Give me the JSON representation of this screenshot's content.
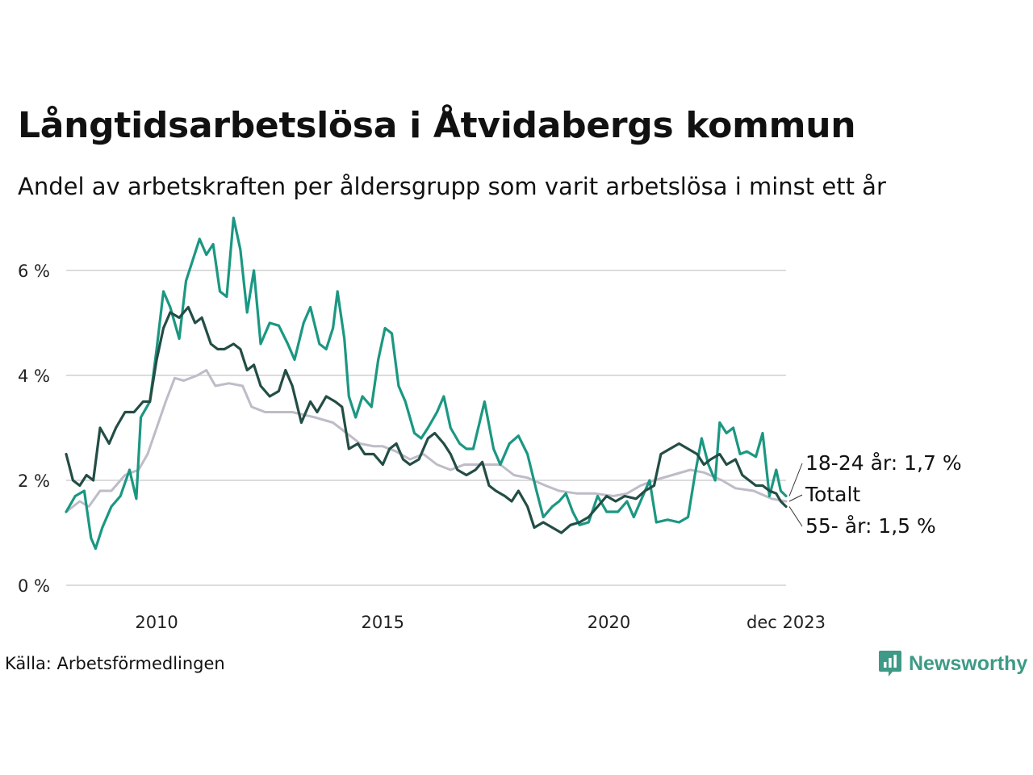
{
  "title": "Långtidsarbetslösa i Åtvidabergs kommun",
  "subtitle": "Andel av arbetskraften per åldersgrupp som varit arbetslösa i minst ett år",
  "source": "Källa: Arbetsförmedlingen",
  "brand": {
    "name": "Newsworthy",
    "icon": "newsworthy-logo-icon",
    "color": "#3e9a86"
  },
  "chart_data": {
    "type": "line",
    "title": "Långtidsarbetslösa i Åtvidabergs kommun",
    "subtitle": "Andel av arbetskraften per åldersgrupp som varit arbetslösa i minst ett år",
    "xlabel": "",
    "ylabel": "",
    "x_range": [
      2008.0,
      2023.917
    ],
    "ylim": [
      0,
      7
    ],
    "y_ticks": [
      0,
      2,
      4,
      6
    ],
    "y_tick_labels": [
      "0 %",
      "2 %",
      "4 %",
      "6 %"
    ],
    "x_ticks": [
      2010,
      2015,
      2020,
      2023.917
    ],
    "x_tick_labels": [
      "2010",
      "2015",
      "2020",
      "dec 2023"
    ],
    "grid": true,
    "legend": "direct labels at line ends (right)",
    "series": [
      {
        "name": "Totalt",
        "end_label": "Totalt",
        "color": "#bdbcc8",
        "points": [
          [
            2008.0,
            1.4
          ],
          [
            2008.3,
            1.6
          ],
          [
            2008.5,
            1.5
          ],
          [
            2008.75,
            1.8
          ],
          [
            2009.0,
            1.8
          ],
          [
            2009.3,
            2.1
          ],
          [
            2009.6,
            2.2
          ],
          [
            2009.8,
            2.5
          ],
          [
            2010.0,
            3.0
          ],
          [
            2010.2,
            3.5
          ],
          [
            2010.4,
            3.95
          ],
          [
            2010.6,
            3.9
          ],
          [
            2010.9,
            4.0
          ],
          [
            2011.1,
            4.1
          ],
          [
            2011.3,
            3.8
          ],
          [
            2011.6,
            3.85
          ],
          [
            2011.9,
            3.8
          ],
          [
            2012.1,
            3.4
          ],
          [
            2012.4,
            3.3
          ],
          [
            2012.7,
            3.3
          ],
          [
            2013.0,
            3.3
          ],
          [
            2013.5,
            3.2
          ],
          [
            2013.9,
            3.1
          ],
          [
            2014.2,
            2.9
          ],
          [
            2014.5,
            2.7
          ],
          [
            2014.8,
            2.65
          ],
          [
            2015.0,
            2.65
          ],
          [
            2015.3,
            2.55
          ],
          [
            2015.6,
            2.4
          ],
          [
            2015.9,
            2.5
          ],
          [
            2016.2,
            2.3
          ],
          [
            2016.5,
            2.2
          ],
          [
            2016.8,
            2.3
          ],
          [
            2017.2,
            2.3
          ],
          [
            2017.6,
            2.3
          ],
          [
            2017.9,
            2.1
          ],
          [
            2018.2,
            2.05
          ],
          [
            2018.6,
            1.9
          ],
          [
            2018.9,
            1.8
          ],
          [
            2019.3,
            1.75
          ],
          [
            2019.7,
            1.75
          ],
          [
            2020.1,
            1.7
          ],
          [
            2020.4,
            1.75
          ],
          [
            2020.7,
            1.9
          ],
          [
            2021.0,
            2.0
          ],
          [
            2021.4,
            2.1
          ],
          [
            2021.8,
            2.2
          ],
          [
            2022.1,
            2.15
          ],
          [
            2022.5,
            2.0
          ],
          [
            2022.8,
            1.85
          ],
          [
            2023.2,
            1.8
          ],
          [
            2023.6,
            1.65
          ],
          [
            2023.917,
            1.6
          ]
        ]
      },
      {
        "name": "18-24 år",
        "end_label": "18-24 år: 1,7 %",
        "color": "#1b9782",
        "points": [
          [
            2008.0,
            1.4
          ],
          [
            2008.2,
            1.7
          ],
          [
            2008.4,
            1.8
          ],
          [
            2008.55,
            0.9
          ],
          [
            2008.65,
            0.7
          ],
          [
            2008.8,
            1.1
          ],
          [
            2009.0,
            1.5
          ],
          [
            2009.2,
            1.7
          ],
          [
            2009.4,
            2.2
          ],
          [
            2009.55,
            1.65
          ],
          [
            2009.65,
            3.2
          ],
          [
            2009.85,
            3.5
          ],
          [
            2010.0,
            4.5
          ],
          [
            2010.15,
            5.6
          ],
          [
            2010.3,
            5.3
          ],
          [
            2010.5,
            4.7
          ],
          [
            2010.65,
            5.8
          ],
          [
            2010.8,
            6.2
          ],
          [
            2010.95,
            6.6
          ],
          [
            2011.1,
            6.3
          ],
          [
            2011.25,
            6.5
          ],
          [
            2011.4,
            5.6
          ],
          [
            2011.55,
            5.5
          ],
          [
            2011.7,
            7.0
          ],
          [
            2011.85,
            6.4
          ],
          [
            2012.0,
            5.2
          ],
          [
            2012.15,
            6.0
          ],
          [
            2012.3,
            4.6
          ],
          [
            2012.5,
            5.0
          ],
          [
            2012.7,
            4.95
          ],
          [
            2012.9,
            4.6
          ],
          [
            2013.05,
            4.3
          ],
          [
            2013.25,
            5.0
          ],
          [
            2013.4,
            5.3
          ],
          [
            2013.6,
            4.6
          ],
          [
            2013.75,
            4.5
          ],
          [
            2013.9,
            4.9
          ],
          [
            2014.0,
            5.6
          ],
          [
            2014.15,
            4.7
          ],
          [
            2014.25,
            3.6
          ],
          [
            2014.4,
            3.2
          ],
          [
            2014.55,
            3.6
          ],
          [
            2014.75,
            3.4
          ],
          [
            2014.9,
            4.3
          ],
          [
            2015.05,
            4.9
          ],
          [
            2015.2,
            4.8
          ],
          [
            2015.35,
            3.8
          ],
          [
            2015.5,
            3.5
          ],
          [
            2015.7,
            2.9
          ],
          [
            2015.85,
            2.8
          ],
          [
            2016.0,
            3.0
          ],
          [
            2016.2,
            3.3
          ],
          [
            2016.35,
            3.6
          ],
          [
            2016.5,
            3.0
          ],
          [
            2016.7,
            2.7
          ],
          [
            2016.85,
            2.6
          ],
          [
            2017.0,
            2.6
          ],
          [
            2017.25,
            3.5
          ],
          [
            2017.45,
            2.6
          ],
          [
            2017.6,
            2.3
          ],
          [
            2017.8,
            2.7
          ],
          [
            2018.0,
            2.85
          ],
          [
            2018.2,
            2.5
          ],
          [
            2018.4,
            1.8
          ],
          [
            2018.55,
            1.3
          ],
          [
            2018.75,
            1.5
          ],
          [
            2018.9,
            1.6
          ],
          [
            2019.05,
            1.75
          ],
          [
            2019.2,
            1.4
          ],
          [
            2019.35,
            1.15
          ],
          [
            2019.55,
            1.2
          ],
          [
            2019.75,
            1.7
          ],
          [
            2019.95,
            1.4
          ],
          [
            2020.2,
            1.4
          ],
          [
            2020.4,
            1.6
          ],
          [
            2020.55,
            1.3
          ],
          [
            2020.75,
            1.7
          ],
          [
            2020.9,
            2.0
          ],
          [
            2021.05,
            1.2
          ],
          [
            2021.3,
            1.25
          ],
          [
            2021.55,
            1.2
          ],
          [
            2021.75,
            1.3
          ],
          [
            2021.9,
            2.1
          ],
          [
            2022.05,
            2.8
          ],
          [
            2022.2,
            2.3
          ],
          [
            2022.35,
            2.0
          ],
          [
            2022.45,
            3.1
          ],
          [
            2022.6,
            2.9
          ],
          [
            2022.75,
            3.0
          ],
          [
            2022.9,
            2.5
          ],
          [
            2023.05,
            2.55
          ],
          [
            2023.25,
            2.45
          ],
          [
            2023.4,
            2.9
          ],
          [
            2023.55,
            1.7
          ],
          [
            2023.7,
            2.2
          ],
          [
            2023.8,
            1.8
          ],
          [
            2023.917,
            1.7
          ]
        ]
      },
      {
        "name": "55- år",
        "end_label": "55- år: 1,5 %",
        "color": "#234d45",
        "points": [
          [
            2008.0,
            2.5
          ],
          [
            2008.15,
            2.0
          ],
          [
            2008.3,
            1.9
          ],
          [
            2008.45,
            2.1
          ],
          [
            2008.6,
            2.0
          ],
          [
            2008.75,
            3.0
          ],
          [
            2008.95,
            2.7
          ],
          [
            2009.1,
            3.0
          ],
          [
            2009.3,
            3.3
          ],
          [
            2009.5,
            3.3
          ],
          [
            2009.7,
            3.5
          ],
          [
            2009.85,
            3.5
          ],
          [
            2010.0,
            4.3
          ],
          [
            2010.15,
            4.9
          ],
          [
            2010.3,
            5.2
          ],
          [
            2010.5,
            5.1
          ],
          [
            2010.7,
            5.3
          ],
          [
            2010.85,
            5.0
          ],
          [
            2011.0,
            5.1
          ],
          [
            2011.2,
            4.6
          ],
          [
            2011.35,
            4.5
          ],
          [
            2011.5,
            4.5
          ],
          [
            2011.7,
            4.6
          ],
          [
            2011.85,
            4.5
          ],
          [
            2012.0,
            4.1
          ],
          [
            2012.15,
            4.2
          ],
          [
            2012.3,
            3.8
          ],
          [
            2012.5,
            3.6
          ],
          [
            2012.7,
            3.7
          ],
          [
            2012.85,
            4.1
          ],
          [
            2013.0,
            3.8
          ],
          [
            2013.2,
            3.1
          ],
          [
            2013.4,
            3.5
          ],
          [
            2013.55,
            3.3
          ],
          [
            2013.75,
            3.6
          ],
          [
            2013.95,
            3.5
          ],
          [
            2014.1,
            3.4
          ],
          [
            2014.25,
            2.6
          ],
          [
            2014.45,
            2.7
          ],
          [
            2014.6,
            2.5
          ],
          [
            2014.8,
            2.5
          ],
          [
            2015.0,
            2.3
          ],
          [
            2015.15,
            2.6
          ],
          [
            2015.3,
            2.7
          ],
          [
            2015.45,
            2.4
          ],
          [
            2015.6,
            2.3
          ],
          [
            2015.8,
            2.4
          ],
          [
            2016.0,
            2.8
          ],
          [
            2016.15,
            2.9
          ],
          [
            2016.35,
            2.7
          ],
          [
            2016.5,
            2.5
          ],
          [
            2016.65,
            2.2
          ],
          [
            2016.85,
            2.1
          ],
          [
            2017.05,
            2.2
          ],
          [
            2017.2,
            2.35
          ],
          [
            2017.35,
            1.9
          ],
          [
            2017.5,
            1.8
          ],
          [
            2017.7,
            1.7
          ],
          [
            2017.85,
            1.6
          ],
          [
            2018.0,
            1.8
          ],
          [
            2018.2,
            1.5
          ],
          [
            2018.35,
            1.1
          ],
          [
            2018.55,
            1.2
          ],
          [
            2018.75,
            1.1
          ],
          [
            2018.95,
            1.0
          ],
          [
            2019.15,
            1.15
          ],
          [
            2019.35,
            1.2
          ],
          [
            2019.55,
            1.3
          ],
          [
            2019.75,
            1.5
          ],
          [
            2019.95,
            1.7
          ],
          [
            2020.15,
            1.6
          ],
          [
            2020.35,
            1.7
          ],
          [
            2020.6,
            1.65
          ],
          [
            2020.8,
            1.8
          ],
          [
            2021.0,
            1.9
          ],
          [
            2021.15,
            2.5
          ],
          [
            2021.35,
            2.6
          ],
          [
            2021.55,
            2.7
          ],
          [
            2021.75,
            2.6
          ],
          [
            2021.95,
            2.5
          ],
          [
            2022.1,
            2.3
          ],
          [
            2022.25,
            2.4
          ],
          [
            2022.45,
            2.5
          ],
          [
            2022.6,
            2.3
          ],
          [
            2022.8,
            2.4
          ],
          [
            2022.95,
            2.1
          ],
          [
            2023.1,
            2.0
          ],
          [
            2023.25,
            1.9
          ],
          [
            2023.4,
            1.9
          ],
          [
            2023.55,
            1.8
          ],
          [
            2023.7,
            1.75
          ],
          [
            2023.8,
            1.6
          ],
          [
            2023.917,
            1.5
          ]
        ]
      }
    ]
  }
}
